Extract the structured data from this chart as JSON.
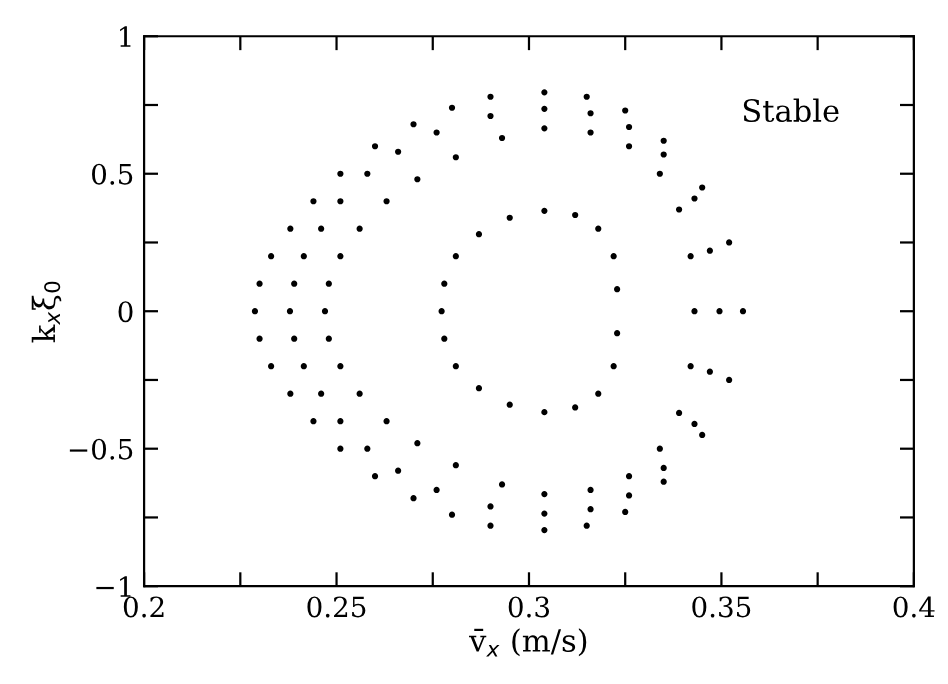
{
  "chart_data": {
    "type": "scatter",
    "marker": "circle",
    "xlabel": "v̄$_{x}$ (m/s)",
    "ylabel": "k$_{x}$ξ$_{0}$",
    "annotations": [
      "Stable"
    ],
    "series": [
      {
        "color": "#000000",
        "x": [
          0.2288,
          0.23,
          0.233,
          0.238,
          0.244,
          0.251,
          0.26,
          0.27,
          0.28,
          0.29,
          0.304,
          0.315,
          0.325,
          0.335,
          0.345,
          0.352,
          0.3556,
          0.352,
          0.345,
          0.335,
          0.325,
          0.315,
          0.304,
          0.29,
          0.28,
          0.27,
          0.26,
          0.251,
          0.244,
          0.238,
          0.233,
          0.23
        ],
        "values": [
          0,
          0.1,
          0.2,
          0.3,
          0.4,
          0.5,
          0.6,
          0.68,
          0.74,
          0.78,
          0.796,
          0.78,
          0.73,
          0.62,
          0.45,
          0.25,
          0,
          -0.25,
          -0.45,
          -0.62,
          -0.73,
          -0.78,
          -0.796,
          -0.78,
          -0.74,
          -0.68,
          -0.6,
          -0.5,
          -0.4,
          -0.3,
          -0.2,
          -0.1
        ]
      },
      {
        "color": "#000000",
        "x": [
          0.2379,
          0.239,
          0.2415,
          0.246,
          0.251,
          0.258,
          0.266,
          0.276,
          0.29,
          0.304,
          0.316,
          0.326,
          0.335,
          0.343,
          0.347,
          0.3495,
          0.347,
          0.343,
          0.335,
          0.326,
          0.316,
          0.304,
          0.29,
          0.276,
          0.266,
          0.258,
          0.251,
          0.246,
          0.2415,
          0.239
        ],
        "values": [
          0,
          0.1,
          0.2,
          0.3,
          0.4,
          0.5,
          0.58,
          0.65,
          0.71,
          0.736,
          0.72,
          0.67,
          0.57,
          0.41,
          0.22,
          0,
          -0.22,
          -0.41,
          -0.57,
          -0.67,
          -0.72,
          -0.736,
          -0.71,
          -0.65,
          -0.58,
          -0.5,
          -0.4,
          -0.3,
          -0.2,
          -0.1
        ]
      },
      {
        "color": "#000000",
        "x": [
          0.247,
          0.248,
          0.251,
          0.256,
          0.263,
          0.271,
          0.281,
          0.293,
          0.304,
          0.316,
          0.326,
          0.334,
          0.339,
          0.342,
          0.343,
          0.342,
          0.339,
          0.334,
          0.326,
          0.316,
          0.304,
          0.293,
          0.281,
          0.271,
          0.263,
          0.256,
          0.251,
          0.248
        ],
        "values": [
          0,
          0.1,
          0.2,
          0.3,
          0.4,
          0.48,
          0.56,
          0.63,
          0.665,
          0.65,
          0.6,
          0.5,
          0.37,
          0.2,
          0,
          -0.2,
          -0.37,
          -0.5,
          -0.6,
          -0.65,
          -0.665,
          -0.63,
          -0.56,
          -0.48,
          -0.4,
          -0.3,
          -0.2,
          -0.1
        ]
      },
      {
        "color": "#000000",
        "x": [
          0.2773,
          0.278,
          0.281,
          0.287,
          0.295,
          0.304,
          0.312,
          0.318,
          0.322,
          0.3229,
          0.3229,
          0.322,
          0.318,
          0.312,
          0.304,
          0.295,
          0.287,
          0.281,
          0.278
        ],
        "values": [
          0,
          0.1,
          0.2,
          0.28,
          0.34,
          0.365,
          0.35,
          0.3,
          0.2,
          0.08,
          -0.08,
          -0.2,
          -0.3,
          -0.35,
          -0.367,
          -0.34,
          -0.28,
          -0.2,
          -0.1
        ]
      }
    ],
    "xlim": [
      0.2,
      0.4
    ],
    "ylim": [
      -1,
      1
    ],
    "xticks": [
      0.2,
      {
        "value": 0.225,
        "label": null
      },
      0.25,
      {
        "value": 0.275,
        "label": null
      },
      0.3,
      {
        "value": 0.325,
        "label": null
      },
      0.35,
      {
        "value": 0.375,
        "label": null
      },
      0.4
    ],
    "yticks": [
      {
        "value": -1,
        "label": "−1"
      },
      {
        "value": -0.75,
        "label": null
      },
      {
        "value": -0.5,
        "label": "−0.5"
      },
      {
        "value": -0.25,
        "label": null
      },
      0,
      {
        "value": 0.25,
        "label": null
      },
      0.5,
      {
        "value": 0.75,
        "label": null
      },
      1
    ],
    "grid": false,
    "legend": false
  }
}
